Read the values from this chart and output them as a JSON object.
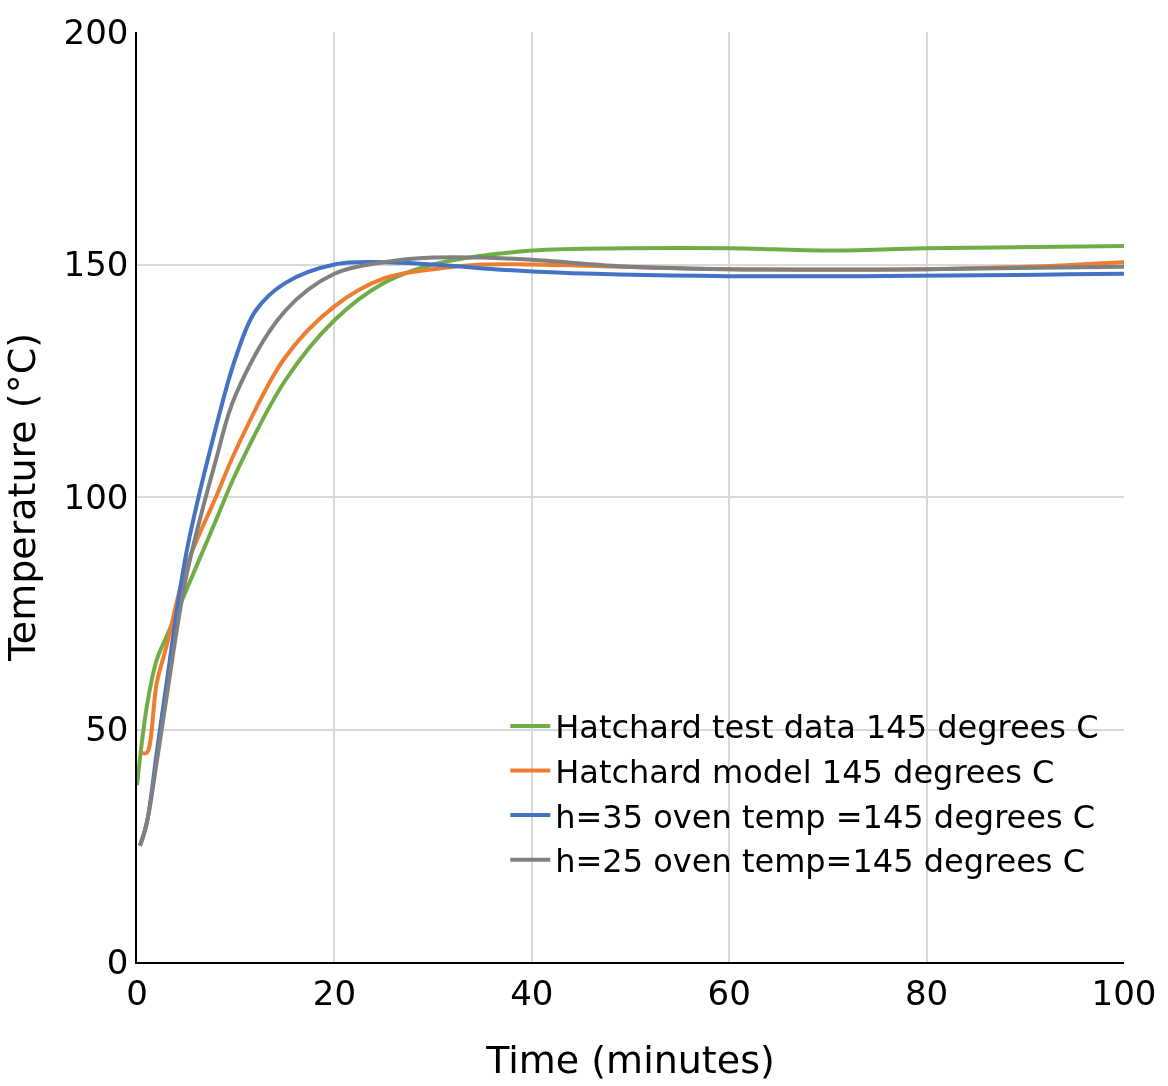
{
  "chart_data": {
    "type": "line",
    "xlabel": "Time (minutes)",
    "ylabel": "Temperature (°C)",
    "xlim": [
      0,
      100
    ],
    "xticks": [
      0,
      20,
      40,
      60,
      80,
      100
    ],
    "ylim": [
      0,
      200
    ],
    "yticks": [
      0,
      50,
      100,
      150,
      200
    ],
    "grid": true,
    "legend": "bottom right",
    "marker": "none",
    "line_style": "solid",
    "series": [
      {
        "name": "Hatchard test data 145 degrees C",
        "color": "#70ad47",
        "x": [
          0,
          1,
          2,
          3,
          5,
          8,
          10,
          15,
          20,
          25,
          30,
          40,
          50,
          60,
          70,
          80,
          100
        ],
        "values": [
          38,
          55,
          65,
          70,
          80,
          95,
          105,
          125,
          138,
          146,
          150,
          153,
          153.5,
          153.5,
          153,
          153.5,
          154
        ]
      },
      {
        "name": "Hatchard model 145 degrees C",
        "color": "#ed7d31",
        "x": [
          0.5,
          1,
          2,
          3,
          5,
          8,
          10,
          15,
          20,
          25,
          30,
          35,
          40,
          60,
          80,
          90,
          100
        ],
        "values": [
          45,
          45,
          60,
          68,
          85,
          100,
          110,
          130,
          141,
          147,
          149,
          150,
          150,
          149,
          149,
          149.5,
          150.5
        ]
      },
      {
        "name": "h=35 oven temp =145 degrees C",
        "color": "#4472c4",
        "x": [
          0.3,
          1,
          2,
          3,
          5,
          8,
          10,
          12,
          15,
          20,
          25,
          30,
          40,
          60,
          100
        ],
        "values": [
          25,
          30,
          45,
          60,
          88,
          115,
          130,
          140,
          146,
          150,
          150.5,
          150,
          148.5,
          147.5,
          148
        ]
      },
      {
        "name": "h=25 oven temp=145 degrees C",
        "color": "#808080",
        "x": [
          0.3,
          1,
          2,
          3,
          5,
          8,
          10,
          15,
          20,
          25,
          30,
          35,
          40,
          50,
          60,
          80,
          100
        ],
        "values": [
          25,
          30,
          43,
          57,
          83,
          108,
          122,
          140,
          148,
          150.5,
          151.5,
          151.5,
          151,
          149.5,
          149,
          149,
          149.5
        ]
      }
    ]
  }
}
